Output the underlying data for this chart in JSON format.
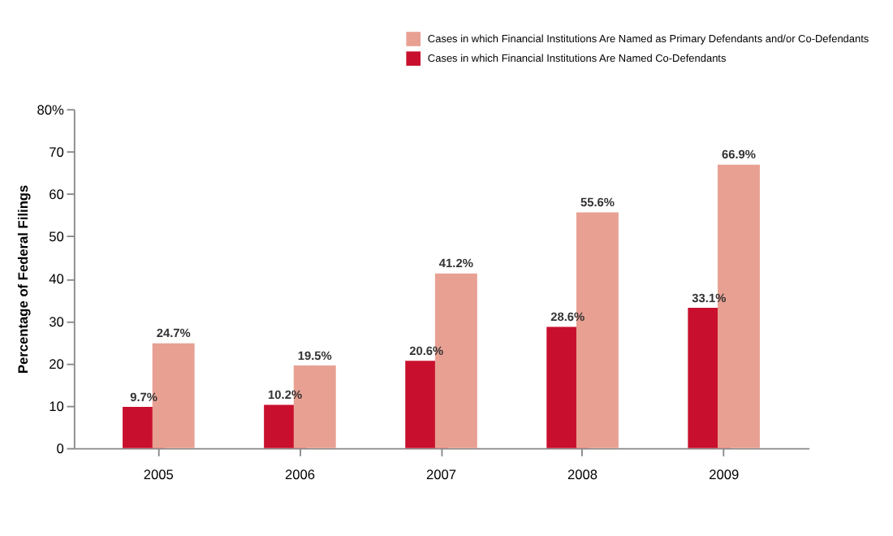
{
  "chart_data": {
    "type": "bar",
    "ylabel": "Percentage of Federal Filings",
    "categories": [
      "2005",
      "2006",
      "2007",
      "2008",
      "2009"
    ],
    "series": [
      {
        "name": "Cases in which Financial Institutions Are Named Co-Defendants",
        "color": "#c8102e",
        "values": [
          9.7,
          10.2,
          20.6,
          28.6,
          33.1
        ],
        "value_labels": [
          "9.7%",
          "10.2%",
          "20.6%",
          "28.6%",
          "33.1%"
        ]
      },
      {
        "name": "Cases in which Financial Institutions Are Named as Primary Defendants and/or Co-Defendants",
        "color": "#e8a093",
        "values": [
          24.7,
          19.5,
          41.2,
          55.6,
          66.9
        ],
        "value_labels": [
          "24.7%",
          "19.5%",
          "41.2%",
          "55.6%",
          "66.9%"
        ]
      }
    ],
    "ylim": [
      0,
      80
    ],
    "yticks": [
      0,
      10,
      20,
      30,
      40,
      50,
      60,
      70,
      {
        "value": 80,
        "label": "80%"
      }
    ],
    "grid": false,
    "legend": "top right"
  }
}
